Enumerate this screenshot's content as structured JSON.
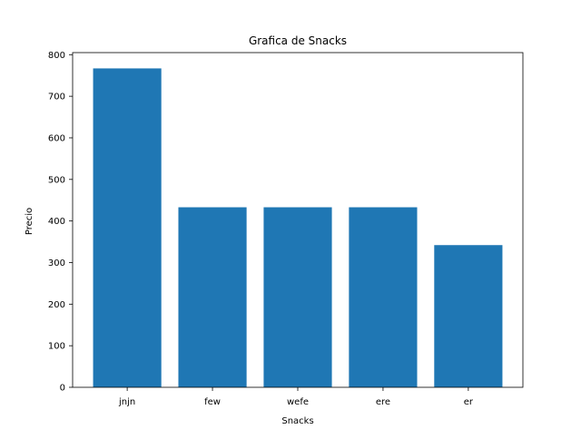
{
  "chart_data": {
    "type": "bar",
    "title": "Grafica de Snacks",
    "xlabel": "Snacks",
    "ylabel": "Precio",
    "categories": [
      "jnjn",
      "few",
      "wefe",
      "ere",
      "er"
    ],
    "values": [
      767,
      433,
      433,
      433,
      342
    ],
    "ylim": [
      0,
      805
    ],
    "yticks": [
      0,
      100,
      200,
      300,
      400,
      500,
      600,
      700,
      800
    ],
    "grid": false,
    "legend": "none",
    "bar_color": "#1f77b4"
  }
}
